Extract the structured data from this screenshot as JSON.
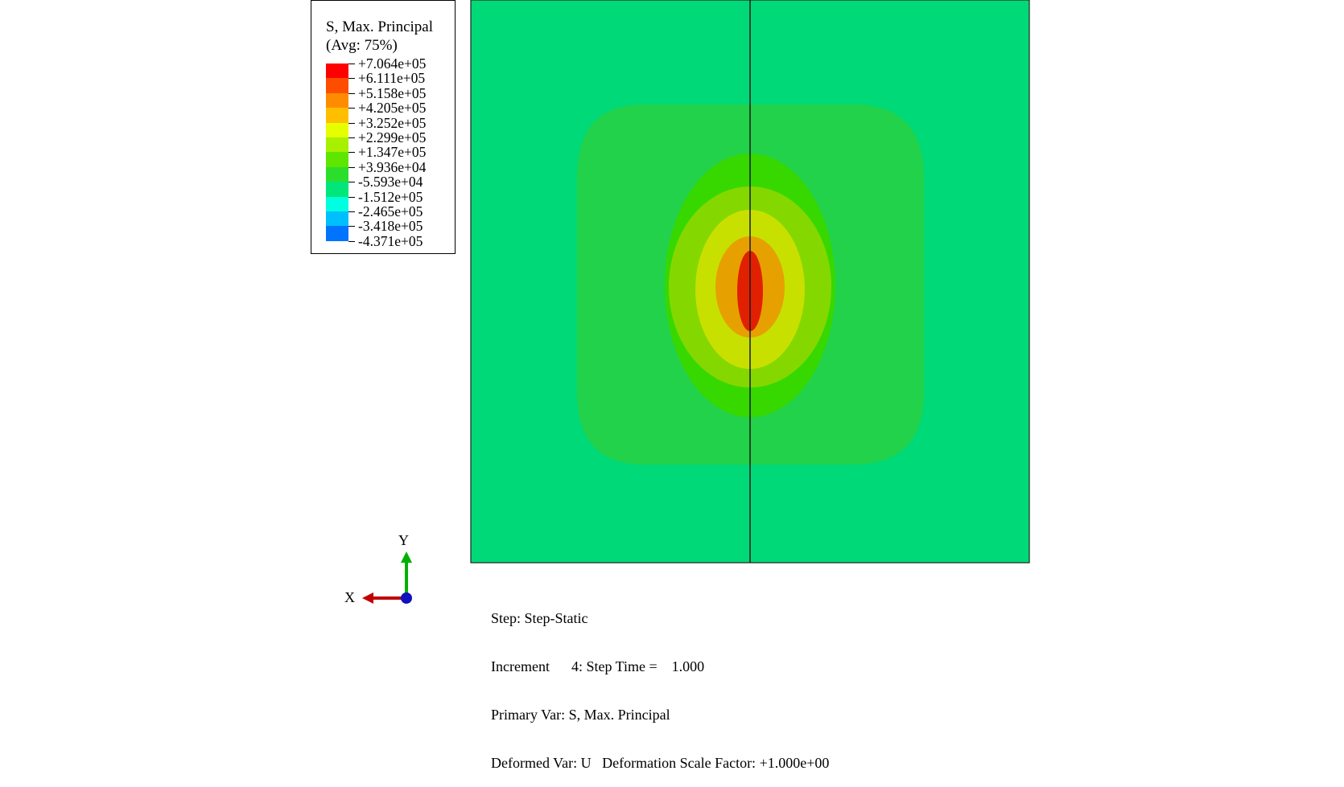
{
  "legend": {
    "title_line1": "S, Max. Principal",
    "title_line2": "(Avg: 75%)",
    "labels": [
      "+7.064e+05",
      "+6.111e+05",
      "+5.158e+05",
      "+4.205e+05",
      "+3.252e+05",
      "+2.299e+05",
      "+1.347e+05",
      "+3.936e+04",
      "-5.593e+04",
      "-1.512e+05",
      "-2.465e+05",
      "-3.418e+05",
      "-4.371e+05"
    ],
    "colors": [
      "#ff0000",
      "#ff4d00",
      "#ff8c00",
      "#ffbf00",
      "#e6ff00",
      "#a6f000",
      "#5ee600",
      "#2cde2c",
      "#00e67a",
      "#00ffe0",
      "#00bfff",
      "#0073ff",
      "#0022ff",
      "#0000ff"
    ]
  },
  "contour_colors": {
    "background": "#00d977",
    "band1": "#22d24a",
    "band2": "#37d800",
    "band3": "#84d800",
    "band4": "#c8e000",
    "band5": "#e6a000",
    "band6": "#e02000",
    "seam": "#1a1a1a"
  },
  "triad": {
    "x_label": "X",
    "y_label": "Y",
    "x_color": "#c00000",
    "y_color": "#00b000",
    "z_color": "#1010c0"
  },
  "info": {
    "line1": "Step: Step-Static",
    "line2": "Increment      4: Step Time =    1.000",
    "line3": "Primary Var: S, Max. Principal",
    "line4": "Deformed Var: U   Deformation Scale Factor: +1.000e+00"
  }
}
